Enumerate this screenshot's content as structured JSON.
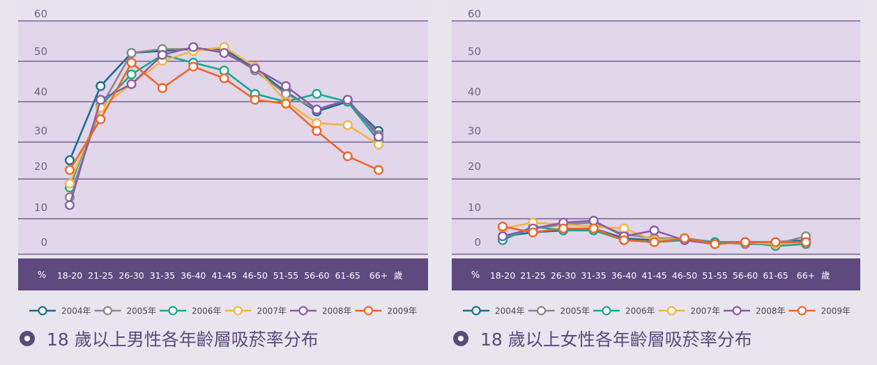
{
  "colors": {
    "page_bg": "#e8e5ef",
    "band": "#e1d6ea",
    "band_light": "#e9e3f0",
    "gridline": "#5c4a80",
    "axis_bar": "#5e4a7f",
    "axis_text": "#ffffff",
    "tick_text": "#6d6383",
    "title_text": "#5a4a7a"
  },
  "chart_data": [
    {
      "type": "line",
      "title": "18 歲以上男性各年齡層吸菸率分布",
      "unit_label": "%",
      "xlabel_suffix": "歲",
      "categories": [
        "18-20",
        "21-25",
        "26-30",
        "31-35",
        "36-40",
        "41-45",
        "46-50",
        "51-55",
        "56-60",
        "61-65",
        "66+"
      ],
      "y_ticks": [
        "60",
        "50",
        "40",
        "30",
        "20",
        "10",
        "0"
      ],
      "ylim": [
        0,
        60
      ],
      "legend_position": "bottom",
      "series": [
        {
          "name": "2004年",
          "color": "#1c6b92",
          "values": [
            22.5,
            41.5,
            50,
            50.5,
            51,
            51,
            46,
            40,
            35,
            37.5,
            30
          ]
        },
        {
          "name": "2005年",
          "color": "#888888",
          "values": [
            13,
            36,
            50,
            51,
            51,
            50.5,
            45.5,
            39.5,
            35.5,
            38,
            29
          ]
        },
        {
          "name": "2006年",
          "color": "#17a98e",
          "values": [
            15.5,
            36.5,
            44.5,
            49.5,
            47.5,
            45.5,
            39.5,
            37.5,
            39.5,
            37.5,
            27.5
          ]
        },
        {
          "name": "2007年",
          "color": "#f5b442",
          "values": [
            16.5,
            36,
            42,
            48,
            50.5,
            51.5,
            46.5,
            37.5,
            32,
            31.5,
            26.5
          ]
        },
        {
          "name": "2008年",
          "color": "#8a5ca8",
          "values": [
            11,
            38,
            42,
            49.5,
            51.5,
            50,
            46,
            41.5,
            35.5,
            38,
            28.5
          ]
        },
        {
          "name": "2009年",
          "color": "#ee6528",
          "values": [
            20,
            33,
            47.5,
            41,
            46.5,
            43.5,
            38,
            37,
            30,
            23.5,
            20
          ]
        }
      ]
    },
    {
      "type": "line",
      "title": "18 歲以上女性各年齡層吸菸率分布",
      "unit_label": "%",
      "xlabel_suffix": "歲",
      "categories": [
        "18-20",
        "21-25",
        "26-30",
        "31-35",
        "36-40",
        "41-45",
        "46-50",
        "51-55",
        "56-60",
        "61-65",
        "66+"
      ],
      "y_ticks": [
        "60",
        "50",
        "40",
        "30",
        "20",
        "10",
        "0"
      ],
      "ylim": [
        0,
        60
      ],
      "legend_position": "bottom",
      "series": [
        {
          "name": "2004年",
          "color": "#1c6b92",
          "values": [
            3,
            4,
            4.5,
            5,
            2.5,
            2,
            2.5,
            1.5,
            1.5,
            1.5,
            2
          ]
        },
        {
          "name": "2005年",
          "color": "#888888",
          "values": [
            2.5,
            5,
            6,
            6.5,
            3.5,
            2.5,
            2.5,
            1.5,
            1,
            1,
            3
          ]
        },
        {
          "name": "2006年",
          "color": "#17a98e",
          "values": [
            2,
            5.5,
            4.5,
            4.5,
            2,
            1.5,
            2,
            1.5,
            1.5,
            0.5,
            1
          ]
        },
        {
          "name": "2007年",
          "color": "#f5b442",
          "values": [
            5,
            6.5,
            6,
            5.5,
            5,
            2,
            2.5,
            1,
            1.5,
            1,
            1.5
          ]
        },
        {
          "name": "2008年",
          "color": "#8a5ca8",
          "values": [
            3,
            5,
            6.5,
            7,
            3,
            4.5,
            2,
            1,
            1.5,
            1.5,
            1.5
          ]
        },
        {
          "name": "2009年",
          "color": "#ee6528",
          "values": [
            5.5,
            4,
            5,
            5,
            2,
            1.5,
            2.5,
            1,
            1.5,
            1.5,
            1.5
          ]
        }
      ]
    }
  ]
}
